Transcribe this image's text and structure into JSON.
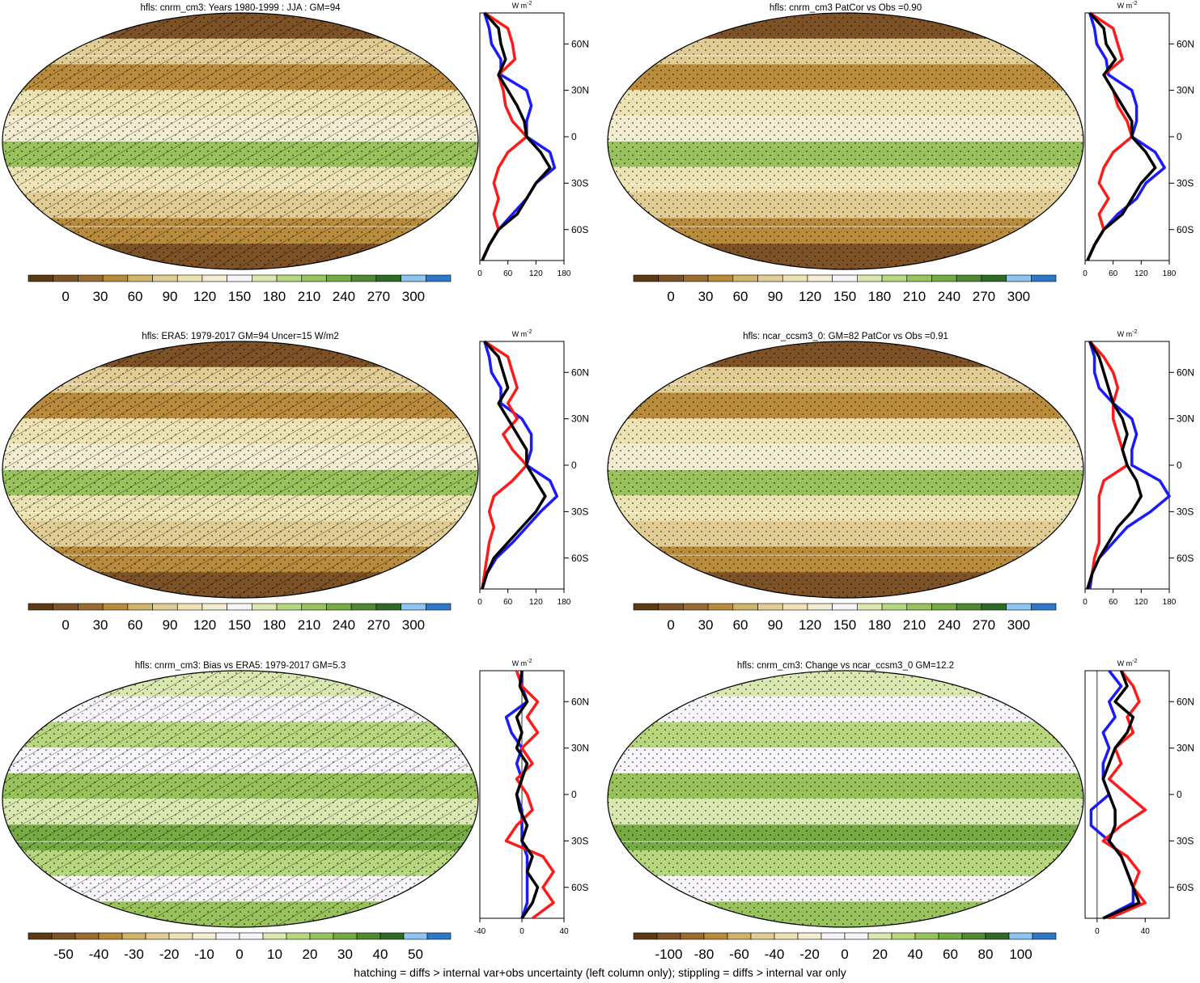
{
  "variable": "hfls",
  "units_label": "W m",
  "units_exp": "-2",
  "lat_labels": [
    "60N",
    "30N",
    "0",
    "30S",
    "60S"
  ],
  "caption": "hatching = diffs > internal var+obs uncertainty (left column only); stippling = diffs > internal var only",
  "colors": {
    "model_line": "#000000",
    "obs_line": "#1a1aff",
    "std_line": "#ff1a1a",
    "full_palette": [
      "#5c3a14",
      "#7d5226",
      "#9a6a30",
      "#b88c3c",
      "#cfb36a",
      "#e1cd93",
      "#ede2b3",
      "#f3ecd0",
      "#f7f4fa",
      "#d8e8b0",
      "#b7d77e",
      "#97c25c",
      "#74ab42",
      "#4f8a33",
      "#2f6b26",
      "#8cc4f2",
      "#2d78c8"
    ],
    "diff_palette": [
      "#5c3a14",
      "#7d5226",
      "#9a6a30",
      "#b88c3c",
      "#cfb36a",
      "#e1cd93",
      "#ede2b3",
      "#f3ecd0",
      "#f7f4fa",
      "#f7f4fa",
      "#d8e8b0",
      "#b7d77e",
      "#97c25c",
      "#74ab42",
      "#4f8a33",
      "#2f6b26",
      "#8cc4f2",
      "#2d78c8"
    ]
  },
  "chart_data": [
    {
      "type": "heatmap",
      "title": "hfls: cnrm_cm3: Years 1980-1999 : JJA : GM=94",
      "colorbar_ticks": [
        "0",
        "30",
        "60",
        "90",
        "120",
        "150",
        "180",
        "210",
        "240",
        "270",
        "300"
      ],
      "palette": "full",
      "hatched": true,
      "profile": {
        "xlim": [
          0,
          180
        ],
        "xticks": [
          "0",
          "60",
          "120",
          "180"
        ],
        "series": [
          {
            "role": "model",
            "lat": [
              80,
              70,
              60,
              50,
              40,
              30,
              20,
              10,
              0,
              -10,
              -20,
              -30,
              -40,
              -50,
              -60,
              -70,
              -80
            ],
            "values": [
              10,
              40,
              45,
              55,
              40,
              60,
              80,
              95,
              100,
              130,
              150,
              120,
              100,
              80,
              40,
              20,
              5
            ]
          },
          {
            "role": "obs",
            "lat": [
              80,
              70,
              60,
              50,
              40,
              30,
              20,
              10,
              0,
              -10,
              -20,
              -30,
              -40,
              -50,
              -60,
              -70,
              -80
            ],
            "values": [
              10,
              20,
              25,
              45,
              45,
              100,
              110,
              100,
              100,
              150,
              160,
              120,
              100,
              70,
              40,
              20,
              5
            ]
          },
          {
            "role": "std",
            "lat": [
              80,
              70,
              60,
              50,
              40,
              30,
              20,
              10,
              0,
              -10,
              -20,
              -30,
              -40,
              -50,
              -60,
              -70,
              -80
            ],
            "values": [
              10,
              60,
              70,
              75,
              40,
              50,
              55,
              70,
              100,
              60,
              40,
              30,
              40,
              30,
              40,
              20,
              5
            ]
          }
        ]
      }
    },
    {
      "type": "heatmap",
      "title": "hfls: cnrm_cm3 PatCor vs Obs =0.90",
      "colorbar_ticks": [
        "0",
        "30",
        "60",
        "90",
        "120",
        "150",
        "180",
        "210",
        "240",
        "270",
        "300"
      ],
      "palette": "full",
      "hatched": false,
      "profile": {
        "xlim": [
          0,
          180
        ],
        "xticks": [
          "0",
          "60",
          "120",
          "180"
        ],
        "series": [
          {
            "role": "model",
            "lat": [
              80,
              70,
              60,
              50,
              40,
              30,
              20,
              10,
              0,
              -10,
              -20,
              -30,
              -40,
              -50,
              -60,
              -70,
              -80
            ],
            "values": [
              10,
              40,
              45,
              65,
              40,
              60,
              80,
              100,
              100,
              130,
              150,
              120,
              100,
              80,
              40,
              20,
              5
            ]
          },
          {
            "role": "obs",
            "lat": [
              80,
              70,
              60,
              50,
              40,
              30,
              20,
              10,
              0,
              -10,
              -20,
              -30,
              -40,
              -50,
              -60,
              -70,
              -80
            ],
            "values": [
              10,
              20,
              25,
              45,
              50,
              100,
              110,
              110,
              100,
              150,
              170,
              130,
              110,
              70,
              40,
              20,
              5
            ]
          },
          {
            "role": "std",
            "lat": [
              80,
              70,
              60,
              50,
              40,
              30,
              20,
              10,
              0,
              -10,
              -20,
              -30,
              -40,
              -50,
              -60,
              -70,
              -80
            ],
            "values": [
              10,
              60,
              70,
              80,
              40,
              60,
              70,
              90,
              100,
              60,
              40,
              30,
              50,
              30,
              40,
              20,
              5
            ]
          }
        ]
      }
    },
    {
      "type": "heatmap",
      "title": "hfls: ERA5: 1979-2017 GM=94 Uncer=15 W/m2",
      "colorbar_ticks": [
        "0",
        "30",
        "60",
        "90",
        "120",
        "150",
        "180",
        "210",
        "240",
        "270",
        "300"
      ],
      "palette": "full",
      "hatched": true,
      "profile": {
        "xlim": [
          0,
          180
        ],
        "xticks": [
          "0",
          "60",
          "120",
          "180"
        ],
        "series": [
          {
            "role": "model",
            "lat": [
              80,
              70,
              60,
              50,
              40,
              30,
              20,
              10,
              0,
              -10,
              -20,
              -30,
              -40,
              -50,
              -60,
              -70,
              -80
            ],
            "values": [
              10,
              40,
              50,
              60,
              40,
              60,
              80,
              100,
              100,
              120,
              140,
              120,
              90,
              60,
              30,
              15,
              5
            ]
          },
          {
            "role": "obs",
            "lat": [
              80,
              70,
              60,
              50,
              40,
              30,
              20,
              10,
              0,
              -10,
              -20,
              -30,
              -40,
              -50,
              -60,
              -70,
              -80
            ],
            "values": [
              10,
              20,
              25,
              45,
              45,
              90,
              110,
              110,
              100,
              150,
              165,
              130,
              100,
              70,
              35,
              15,
              5
            ]
          },
          {
            "role": "std",
            "lat": [
              80,
              70,
              60,
              50,
              40,
              30,
              20,
              10,
              0,
              -10,
              -20,
              -30,
              -40,
              -50,
              -60,
              -70,
              -80
            ],
            "values": [
              10,
              60,
              70,
              80,
              60,
              80,
              50,
              70,
              100,
              70,
              30,
              20,
              30,
              20,
              15,
              10,
              5
            ]
          }
        ]
      }
    },
    {
      "type": "heatmap",
      "title": "hfls: ncar_ccsm3_0: GM=82 PatCor vs Obs =0.91",
      "colorbar_ticks": [
        "0",
        "30",
        "60",
        "90",
        "120",
        "150",
        "180",
        "210",
        "240",
        "270",
        "300"
      ],
      "palette": "full",
      "hatched": false,
      "profile": {
        "xlim": [
          0,
          180
        ],
        "xticks": [
          "0",
          "60",
          "120",
          "180"
        ],
        "series": [
          {
            "role": "model",
            "lat": [
              80,
              70,
              60,
              50,
              40,
              30,
              20,
              10,
              0,
              -10,
              -20,
              -30,
              -40,
              -50,
              -60,
              -70,
              -80
            ],
            "values": [
              10,
              30,
              40,
              50,
              60,
              80,
              90,
              80,
              90,
              110,
              120,
              100,
              70,
              50,
              30,
              15,
              5
            ]
          },
          {
            "role": "obs",
            "lat": [
              80,
              70,
              60,
              50,
              40,
              30,
              20,
              10,
              0,
              -10,
              -20,
              -30,
              -40,
              -50,
              -60,
              -70,
              -80
            ],
            "values": [
              10,
              20,
              20,
              30,
              60,
              100,
              110,
              100,
              100,
              160,
              180,
              140,
              90,
              60,
              30,
              15,
              10
            ]
          },
          {
            "role": "std",
            "lat": [
              80,
              70,
              60,
              50,
              40,
              30,
              20,
              10,
              0,
              -10,
              -20,
              -30,
              -40,
              -50,
              -60,
              -70,
              -80
            ],
            "values": [
              10,
              40,
              60,
              70,
              60,
              60,
              70,
              80,
              90,
              40,
              30,
              30,
              30,
              30,
              20,
              15,
              5
            ]
          }
        ]
      }
    },
    {
      "type": "heatmap",
      "title": "hfls: cnrm_cm3: Bias vs ERA5: 1979-2017 GM=5.3",
      "colorbar_ticks": [
        "-50",
        "-40",
        "-30",
        "-20",
        "-10",
        "0",
        "10",
        "20",
        "30",
        "40",
        "50"
      ],
      "palette": "diff",
      "hatched": true,
      "profile": {
        "xlim": [
          -40,
          40
        ],
        "xticks": [
          "-40",
          "0",
          "40"
        ],
        "series": [
          {
            "role": "model",
            "lat": [
              80,
              70,
              60,
              50,
              40,
              30,
              20,
              10,
              0,
              -10,
              -20,
              -30,
              -40,
              -50,
              -60,
              -70,
              -80
            ],
            "values": [
              0,
              -2,
              5,
              -5,
              0,
              -5,
              5,
              0,
              -5,
              -2,
              5,
              0,
              10,
              5,
              15,
              10,
              0
            ]
          },
          {
            "role": "obs",
            "lat": [
              80,
              70,
              60,
              50,
              40,
              30,
              20,
              10,
              0,
              -10,
              -20,
              -30,
              -40,
              -50,
              -60,
              -70,
              -80
            ],
            "values": [
              0,
              0,
              5,
              -15,
              -10,
              0,
              -5,
              0,
              -5,
              0,
              0,
              0,
              5,
              5,
              5,
              5,
              0
            ]
          },
          {
            "role": "std",
            "lat": [
              80,
              70,
              60,
              50,
              40,
              30,
              20,
              10,
              0,
              -10,
              -20,
              -30,
              -40,
              -50,
              -60,
              -70,
              -80
            ],
            "values": [
              -5,
              0,
              15,
              5,
              15,
              0,
              10,
              -5,
              5,
              10,
              -5,
              -15,
              20,
              30,
              20,
              30,
              10
            ]
          }
        ]
      }
    },
    {
      "type": "heatmap",
      "title": "hfls: cnrm_cm3: Change vs ncar_ccsm3_0 GM=12.2",
      "colorbar_ticks": [
        "-100",
        "-80",
        "-60",
        "-40",
        "-20",
        "0",
        "20",
        "40",
        "60",
        "80",
        "100"
      ],
      "palette": "diff",
      "hatched": false,
      "profile": {
        "xlim": [
          -10,
          60
        ],
        "xticks": [
          "0",
          "40"
        ],
        "series": [
          {
            "role": "model",
            "lat": [
              80,
              70,
              60,
              50,
              40,
              30,
              20,
              10,
              0,
              -10,
              -20,
              -30,
              -40,
              -50,
              -60,
              -70,
              -80
            ],
            "values": [
              20,
              25,
              15,
              30,
              25,
              15,
              10,
              5,
              10,
              15,
              15,
              10,
              20,
              25,
              30,
              35,
              5
            ]
          },
          {
            "role": "obs",
            "lat": [
              80,
              70,
              60,
              50,
              40,
              30,
              20,
              10,
              0,
              -10,
              -20,
              -30,
              -40,
              -50,
              -60,
              -70,
              -80
            ],
            "values": [
              10,
              20,
              10,
              15,
              5,
              10,
              5,
              5,
              10,
              -5,
              -5,
              10,
              20,
              25,
              30,
              30,
              5
            ]
          },
          {
            "role": "std",
            "lat": [
              80,
              70,
              60,
              50,
              40,
              30,
              20,
              10,
              0,
              -10,
              -20,
              -30,
              -40,
              -50,
              -60,
              -70,
              -80
            ],
            "values": [
              20,
              30,
              35,
              25,
              30,
              15,
              20,
              10,
              25,
              40,
              20,
              5,
              25,
              35,
              30,
              40,
              10
            ]
          }
        ]
      }
    }
  ]
}
